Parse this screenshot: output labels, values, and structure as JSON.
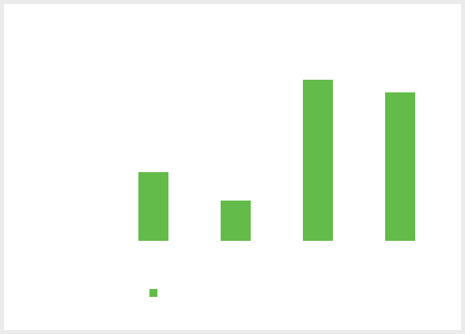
{
  "chart_data": {
    "type": "bar",
    "title": "",
    "xlabel": "",
    "ylabel": "",
    "categories": [
      "",
      "",
      "",
      ""
    ],
    "series": [
      {
        "color": "#63bb4a",
        "values": [
          87,
          51,
          204,
          188
        ]
      }
    ],
    "ylim": [
      0,
      204
    ],
    "grid": false,
    "legend": "bottom-left"
  }
}
